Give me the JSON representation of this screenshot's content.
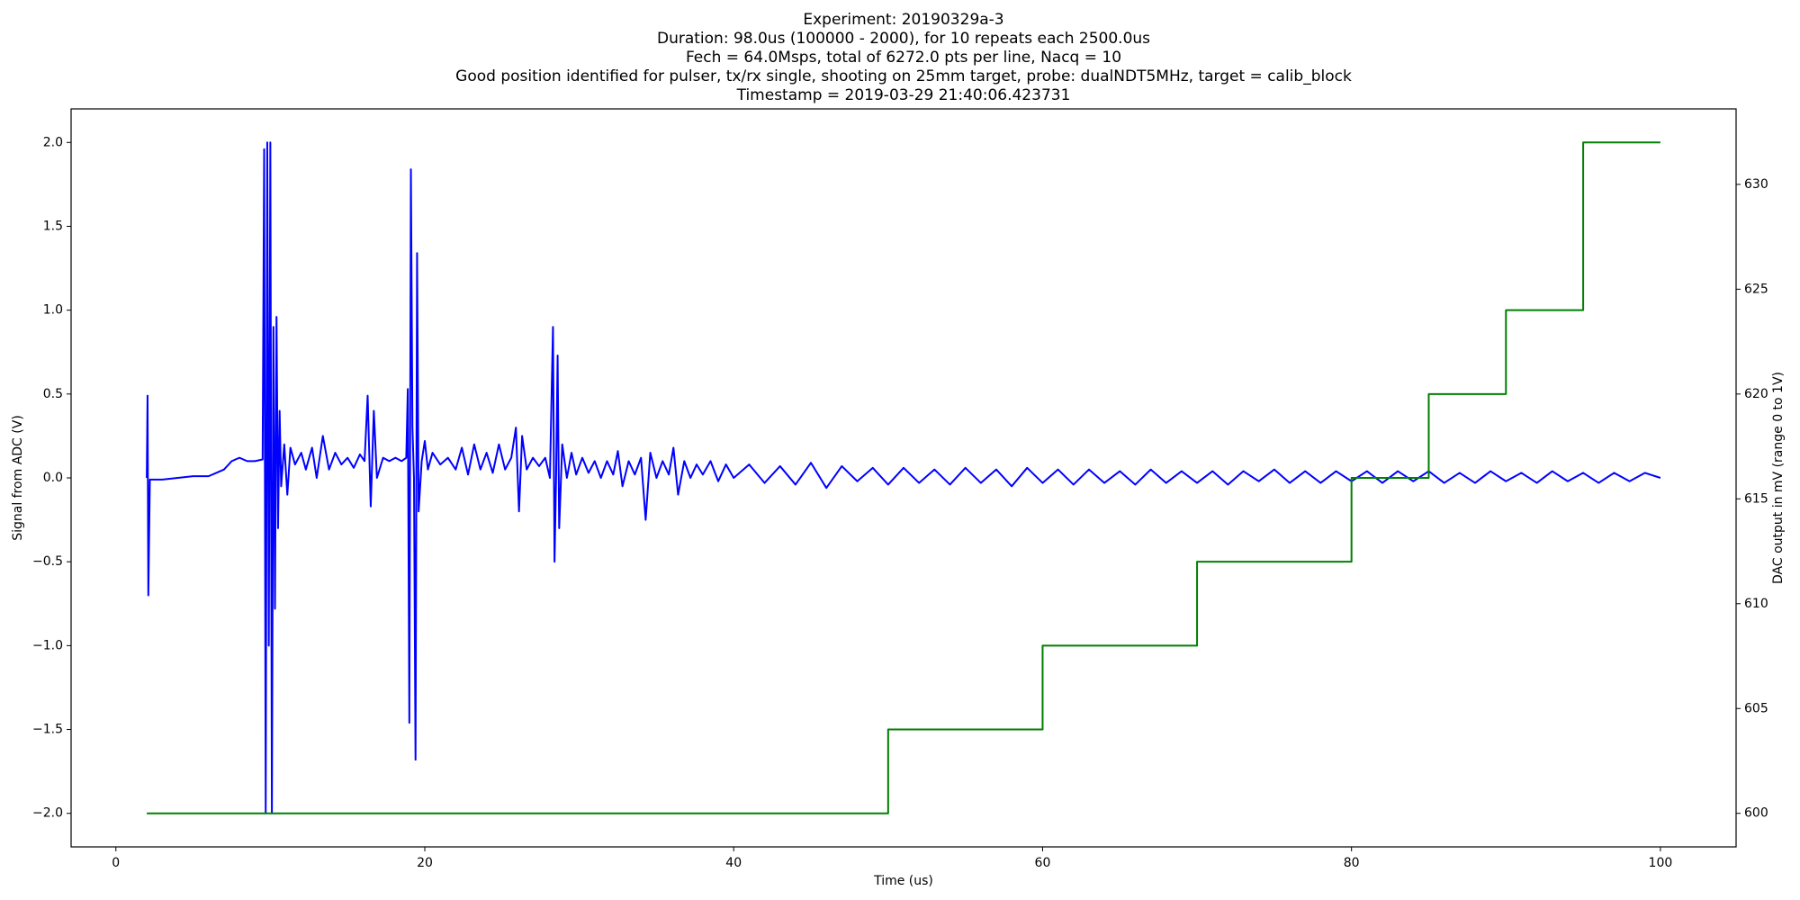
{
  "chart_data": {
    "type": "line",
    "title": [
      "Experiment: 20190329a-3",
      "Duration: 98.0us (100000 - 2000), for 10 repeats each 2500.0us",
      "Fech = 64.0Msps, total of 6272.0 pts per line, Nacq = 10",
      "Good position identified for pulser, tx/rx single, shooting on 25mm target, probe: dualNDT5MHz, target = calib_block",
      "Timestamp = 2019-03-29 21:40:06.423731"
    ],
    "xlabel": "Time (us)",
    "ylabel": "Signal from ADC (V)",
    "ylabel_color": "#0000ff",
    "y2label": "DAC output in mV (range 0 to 1V)",
    "y2label_color": "#008000",
    "xlim": [
      -2.9,
      104.9
    ],
    "xticks": [
      0,
      20,
      40,
      60,
      80,
      100
    ],
    "ylim": [
      -2.2,
      2.2
    ],
    "yticks": [
      {
        "value": -2,
        "label": "−2.0"
      },
      {
        "value": -1.5,
        "label": "−1.5"
      },
      {
        "value": -1,
        "label": "−1.0"
      },
      {
        "value": -0.5,
        "label": "−0.5"
      },
      {
        "value": 0,
        "label": "0.0"
      },
      0.5,
      {
        "value": 1,
        "label": "1.0"
      },
      1.5,
      {
        "value": 2,
        "label": "2.0"
      }
    ],
    "y2lim": [
      598.4,
      633.6
    ],
    "y2ticks": [
      600,
      605,
      610,
      615,
      620,
      625,
      630
    ],
    "grid": false,
    "series": [
      {
        "color": "#0000ff",
        "x": [
          2,
          2.05,
          2.1,
          2.2,
          3,
          4,
          5,
          6,
          6.5,
          7,
          7.5,
          8,
          8.5,
          9,
          9.5,
          9.6,
          9.7,
          9.8,
          9.9,
          10,
          10.1,
          10.2,
          10.3,
          10.4,
          10.5,
          10.6,
          10.7,
          10.9,
          11.1,
          11.3,
          11.6,
          12,
          12.3,
          12.7,
          13,
          13.4,
          13.8,
          14.2,
          14.6,
          15,
          15.4,
          15.8,
          16.1,
          16.3,
          16.5,
          16.7,
          16.9,
          17.3,
          17.7,
          18.1,
          18.5,
          18.8,
          18.9,
          19.0,
          19.1,
          19.2,
          19.3,
          19.4,
          19.5,
          19.6,
          19.8,
          20.0,
          20.2,
          20.5,
          21,
          21.5,
          22,
          22.4,
          22.8,
          23.2,
          23.6,
          24,
          24.4,
          24.8,
          25.2,
          25.6,
          25.9,
          26.1,
          26.3,
          26.6,
          27,
          27.4,
          27.8,
          28.1,
          28.3,
          28.4,
          28.5,
          28.6,
          28.7,
          28.9,
          29.2,
          29.5,
          29.8,
          30.2,
          30.6,
          31,
          31.4,
          31.8,
          32.2,
          32.5,
          32.8,
          33.2,
          33.6,
          34,
          34.3,
          34.6,
          35,
          35.4,
          35.8,
          36.1,
          36.4,
          36.8,
          37.2,
          37.6,
          38,
          38.5,
          39,
          39.5,
          40,
          41,
          42,
          43,
          44,
          45,
          46,
          47,
          48,
          49,
          50,
          51,
          52,
          53,
          54,
          55,
          56,
          57,
          58,
          59,
          60,
          61,
          62,
          63,
          64,
          65,
          66,
          67,
          68,
          69,
          70,
          71,
          72,
          73,
          74,
          75,
          76,
          77,
          78,
          79,
          80,
          81,
          82,
          83,
          84,
          85,
          86,
          87,
          88,
          89,
          90,
          91,
          92,
          93,
          94,
          95,
          96,
          97,
          98,
          99,
          100
        ],
        "values": [
          0,
          0.49,
          -0.7,
          -0.01,
          -0.01,
          0,
          0.01,
          0.01,
          0.03,
          0.05,
          0.1,
          0.12,
          0.1,
          0.1,
          0.11,
          1.96,
          -2,
          2,
          -1,
          2,
          -2,
          0.9,
          -0.78,
          0.96,
          -0.3,
          0.4,
          -0.05,
          0.2,
          -0.1,
          0.18,
          0.08,
          0.15,
          0.05,
          0.18,
          0,
          0.25,
          0.05,
          0.15,
          0.08,
          0.12,
          0.06,
          0.14,
          0.1,
          0.49,
          -0.17,
          0.4,
          0,
          0.12,
          0.1,
          0.12,
          0.1,
          0.12,
          0.53,
          -1.46,
          1.84,
          0.3,
          0,
          -1.68,
          1.34,
          -0.2,
          0.1,
          0.22,
          0.05,
          0.15,
          0.08,
          0.12,
          0.05,
          0.18,
          0.02,
          0.2,
          0.05,
          0.15,
          0.03,
          0.2,
          0.05,
          0.12,
          0.3,
          -0.2,
          0.25,
          0.05,
          0.12,
          0.07,
          0.12,
          0,
          0.9,
          -0.5,
          0,
          0.73,
          -0.3,
          0.2,
          0,
          0.15,
          0.02,
          0.12,
          0.03,
          0.1,
          0,
          0.1,
          0.02,
          0.16,
          -0.05,
          0.1,
          0.02,
          0.12,
          -0.25,
          0.15,
          0,
          0.1,
          0.02,
          0.18,
          -0.1,
          0.1,
          0,
          0.08,
          0.02,
          0.1,
          -0.02,
          0.08,
          0,
          0.08,
          -0.03,
          0.07,
          -0.04,
          0.09,
          -0.06,
          0.07,
          -0.02,
          0.06,
          -0.04,
          0.06,
          -0.03,
          0.05,
          -0.04,
          0.06,
          -0.03,
          0.05,
          -0.05,
          0.06,
          -0.03,
          0.05,
          -0.04,
          0.05,
          -0.03,
          0.04,
          -0.04,
          0.05,
          -0.03,
          0.04,
          -0.03,
          0.04,
          -0.04,
          0.04,
          -0.02,
          0.05,
          -0.03,
          0.04,
          -0.03,
          0.04,
          -0.02,
          0.04,
          -0.03,
          0.04,
          -0.02,
          0.04,
          -0.03,
          0.03,
          -0.03,
          0.04,
          -0.02,
          0.03,
          -0.03,
          0.04,
          -0.02,
          0.03,
          -0.03,
          0.03,
          -0.02,
          0.03,
          0
        ]
      },
      {
        "color": "#008000",
        "axis": "y2",
        "x": [
          2,
          50,
          50,
          60,
          60,
          70,
          70,
          80,
          80,
          85,
          85,
          90,
          90,
          95,
          95,
          100
        ],
        "values": [
          600,
          600,
          604,
          604,
          608,
          608,
          612,
          612,
          616,
          616,
          620,
          620,
          624,
          624,
          632,
          632
        ]
      }
    ]
  }
}
